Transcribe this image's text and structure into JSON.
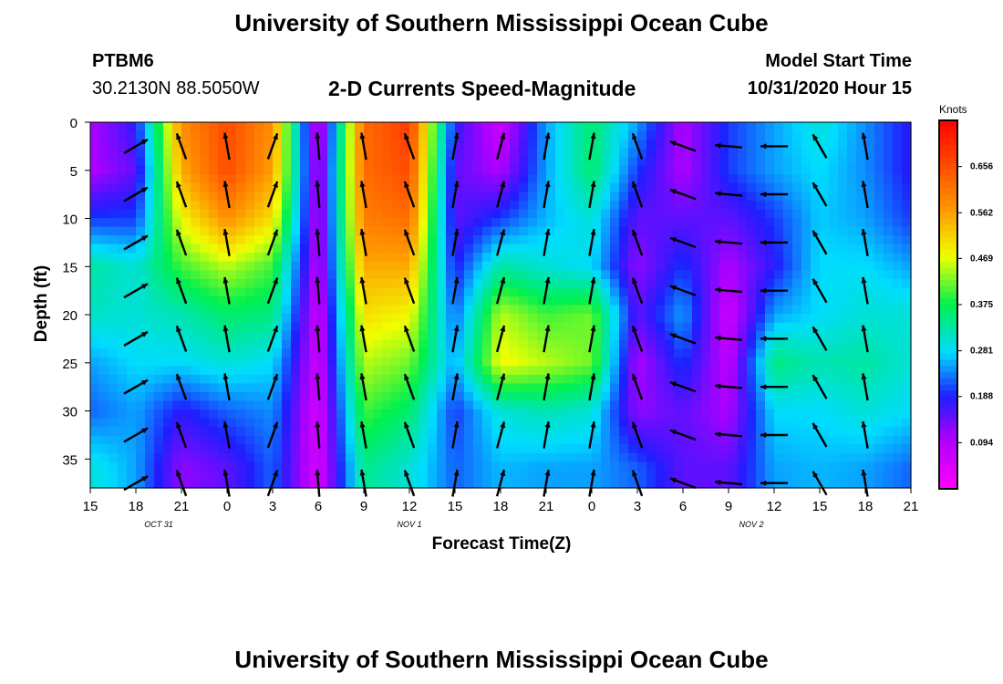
{
  "header": {
    "title": "University of Southern Mississippi Ocean Cube",
    "station": "PTBM6",
    "coords": "30.2130N 88.5050W",
    "subtitle": "2-D Currents Speed-Magnitude",
    "model_start_label": "Model Start Time",
    "model_start_value": "10/31/2020 Hour 15"
  },
  "footer": {
    "title": "University of Southern Mississippi Ocean Cube"
  },
  "colorbar": {
    "units": "Knots",
    "ticks": [
      "0.094",
      "0.188",
      "0.281",
      "0.375",
      "0.469",
      "0.562",
      "0.656"
    ]
  },
  "chart_data": {
    "type": "heatmap",
    "title": "2-D Currents Speed-Magnitude",
    "xlabel": "Forecast Time(Z)",
    "ylabel": "Depth (ft)",
    "x_ticks": [
      "15",
      "18",
      "21",
      "0",
      "3",
      "6",
      "9",
      "12",
      "15",
      "18",
      "21",
      "0",
      "3",
      "6",
      "9",
      "12",
      "15",
      "18",
      "21"
    ],
    "date_labels": [
      {
        "label": "OCT 31",
        "at_tick": 1.5
      },
      {
        "label": "NOV 1",
        "at_tick": 7
      },
      {
        "label": "NOV 2",
        "at_tick": 14.5
      }
    ],
    "y_ticks": [
      0,
      5,
      10,
      15,
      20,
      25,
      30,
      35
    ],
    "ylim": [
      0,
      38
    ],
    "xlim_hours": [
      0,
      54
    ],
    "color_range": [
      0,
      0.75
    ],
    "x_hours": [
      0,
      3,
      6,
      9,
      12,
      15,
      18,
      21,
      24,
      27,
      30,
      33,
      36,
      39,
      42,
      45,
      48,
      51,
      54
    ],
    "speed_knots_by_time_profile": [
      [
        0.1,
        0.1,
        0.2,
        0.33,
        0.31,
        0.25,
        0.22,
        0.3
      ],
      [
        0.18,
        0.15,
        0.2,
        0.3,
        0.3,
        0.28,
        0.25,
        0.25
      ],
      [
        0.58,
        0.55,
        0.48,
        0.4,
        0.32,
        0.28,
        0.18,
        0.12
      ],
      [
        0.66,
        0.66,
        0.58,
        0.45,
        0.36,
        0.3,
        0.22,
        0.15
      ],
      [
        0.58,
        0.56,
        0.5,
        0.4,
        0.35,
        0.28,
        0.24,
        0.22
      ],
      [
        0.06,
        0.08,
        0.08,
        0.08,
        0.06,
        0.06,
        0.05,
        0.05
      ],
      [
        0.62,
        0.62,
        0.6,
        0.55,
        0.5,
        0.45,
        0.4,
        0.34
      ],
      [
        0.68,
        0.66,
        0.62,
        0.55,
        0.48,
        0.42,
        0.36,
        0.3
      ],
      [
        0.18,
        0.15,
        0.15,
        0.18,
        0.22,
        0.25,
        0.2,
        0.22
      ],
      [
        0.06,
        0.1,
        0.2,
        0.33,
        0.45,
        0.48,
        0.3,
        0.26
      ],
      [
        0.25,
        0.25,
        0.26,
        0.3,
        0.4,
        0.45,
        0.32,
        0.25
      ],
      [
        0.36,
        0.36,
        0.3,
        0.28,
        0.42,
        0.42,
        0.3,
        0.25
      ],
      [
        0.25,
        0.2,
        0.15,
        0.12,
        0.15,
        0.1,
        0.12,
        0.22
      ],
      [
        0.1,
        0.1,
        0.15,
        0.2,
        0.25,
        0.2,
        0.15,
        0.15
      ],
      [
        0.2,
        0.2,
        0.15,
        0.1,
        0.06,
        0.08,
        0.1,
        0.15
      ],
      [
        0.25,
        0.25,
        0.2,
        0.18,
        0.25,
        0.35,
        0.28,
        0.25
      ],
      [
        0.3,
        0.28,
        0.27,
        0.28,
        0.28,
        0.32,
        0.28,
        0.26
      ],
      [
        0.24,
        0.24,
        0.25,
        0.28,
        0.3,
        0.33,
        0.3,
        0.25
      ],
      [
        0.18,
        0.18,
        0.2,
        0.25,
        0.3,
        0.3,
        0.28,
        0.22
      ]
    ],
    "profile_depths_ft": [
      0,
      5,
      10,
      15,
      20,
      25,
      30,
      36
    ]
  }
}
